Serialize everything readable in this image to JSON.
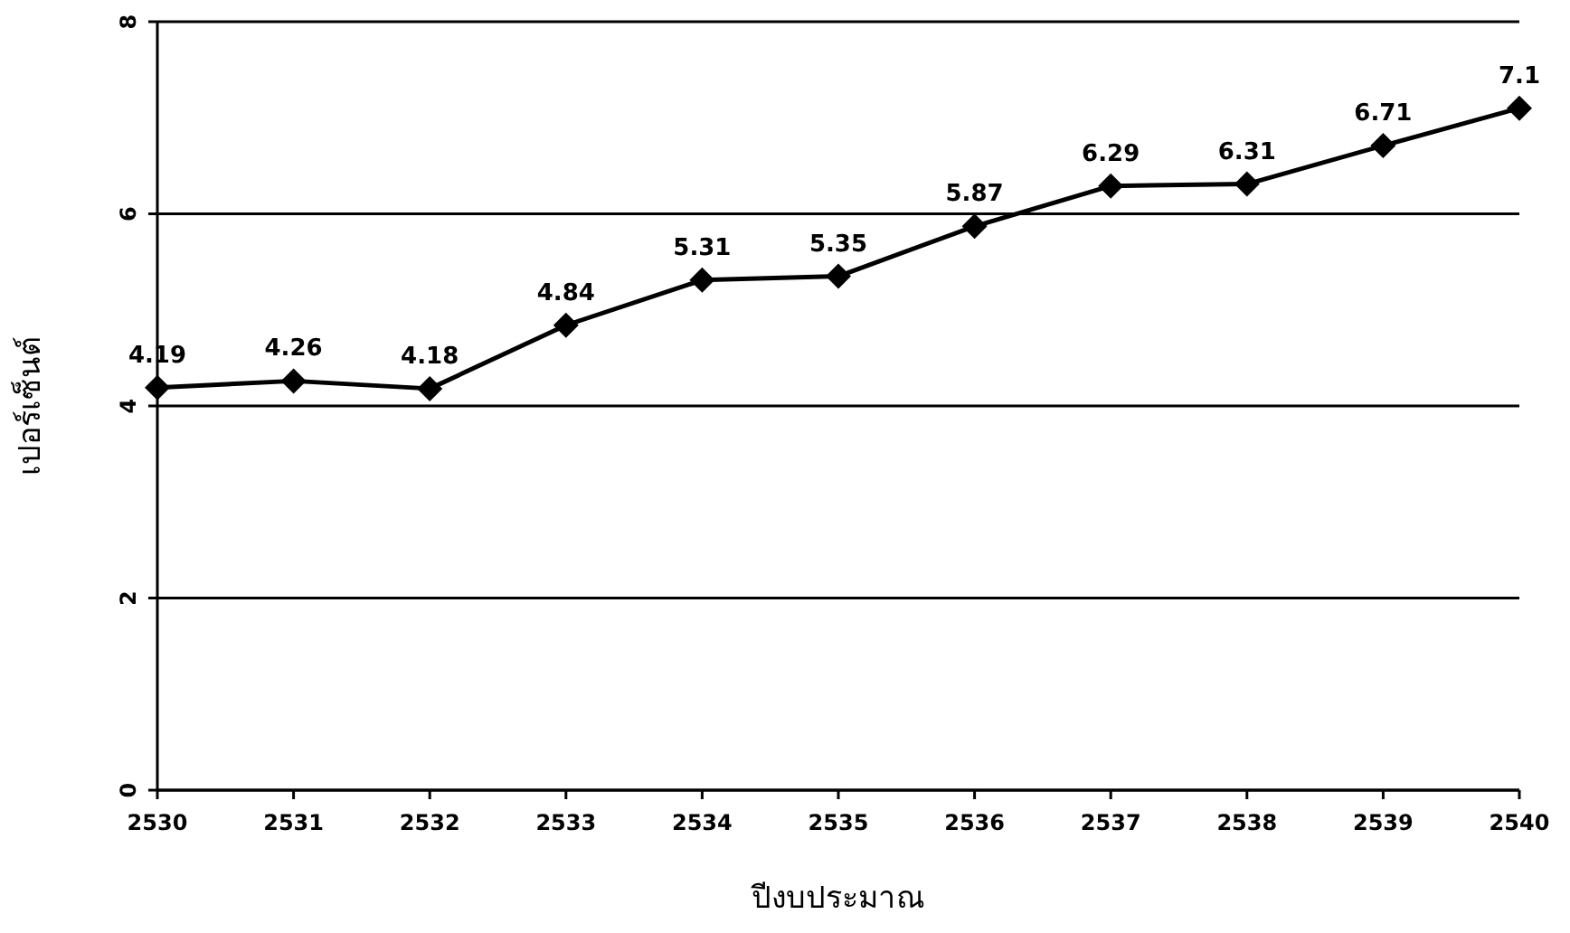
{
  "chart_data": {
    "type": "line",
    "xlabel": "ปีงบประมาณ",
    "ylabel": "เปอร์เซ็นต์",
    "categories": [
      "2530",
      "2531",
      "2532",
      "2533",
      "2534",
      "2535",
      "2536",
      "2537",
      "2538",
      "2539",
      "2540"
    ],
    "values": [
      4.19,
      4.26,
      4.18,
      4.84,
      5.31,
      5.35,
      5.87,
      6.29,
      6.31,
      6.71,
      7.1
    ],
    "color": "#000000",
    "ylim": [
      0,
      8
    ],
    "yticks": [
      0,
      2,
      4,
      6,
      8
    ],
    "grid": "y",
    "marker": "diamond",
    "line_style": "solid",
    "data_labels": true
  }
}
